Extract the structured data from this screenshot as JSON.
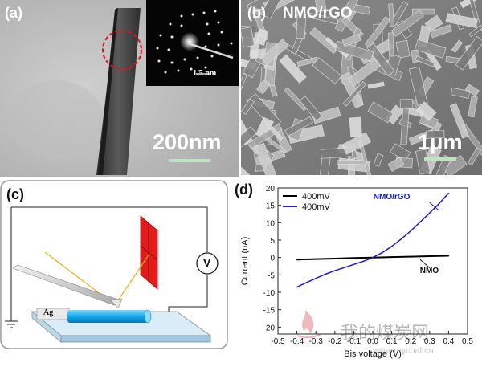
{
  "panel_a": {
    "label": "(a)",
    "scale_text": "200nm",
    "inset_scale_text": "1/5 nm"
  },
  "panel_b": {
    "label": "(b)",
    "sample_text": "NMO/rGO",
    "scale_text": "1μm"
  },
  "panel_c": {
    "label": "(c)",
    "electrode_text": "Ag",
    "voltmeter_text": "V"
  },
  "panel_d": {
    "label": "(d)",
    "watermark": "我的煤炭网",
    "watermark_url": "www.mycoal.cn"
  },
  "chart_data": {
    "type": "line",
    "xlabel": "Bis voltage (V)",
    "ylabel": "Current (nA)",
    "xlim": [
      -0.5,
      0.5
    ],
    "ylim": [
      -22,
      20
    ],
    "xticks": [
      "-0.5",
      "-0.4",
      "-0.3",
      "-0.2",
      "-0.1",
      "0.0",
      "0.1",
      "0.2",
      "0.3",
      "0.4",
      "0.5"
    ],
    "yticks": [
      "20",
      "15",
      "10",
      "5",
      "0",
      "-5",
      "-10",
      "-15",
      "-20"
    ],
    "legend": [
      "400mV",
      "400mV"
    ],
    "legend_position": "top-left",
    "annotations": [
      "NMO/rGO",
      "NMO"
    ],
    "series": [
      {
        "name": "NMO",
        "color": "#000000",
        "x": [
          -0.4,
          -0.3,
          -0.2,
          -0.1,
          0.0,
          0.1,
          0.2,
          0.3,
          0.4
        ],
        "y": [
          -0.6,
          -0.45,
          -0.3,
          -0.15,
          0.0,
          0.12,
          0.25,
          0.38,
          0.5
        ]
      },
      {
        "name": "NMO/rGO",
        "color": "#1a1acc",
        "x": [
          -0.4,
          -0.35,
          -0.3,
          -0.25,
          -0.2,
          -0.15,
          -0.1,
          -0.05,
          0.0,
          0.05,
          0.1,
          0.15,
          0.2,
          0.25,
          0.3,
          0.35,
          0.4
        ],
        "y": [
          -8.5,
          -7.2,
          -6.0,
          -4.8,
          -3.8,
          -2.9,
          -2.0,
          -1.1,
          0.0,
          1.4,
          3.2,
          5.3,
          7.6,
          10.2,
          12.8,
          15.5,
          18.5
        ]
      }
    ]
  }
}
